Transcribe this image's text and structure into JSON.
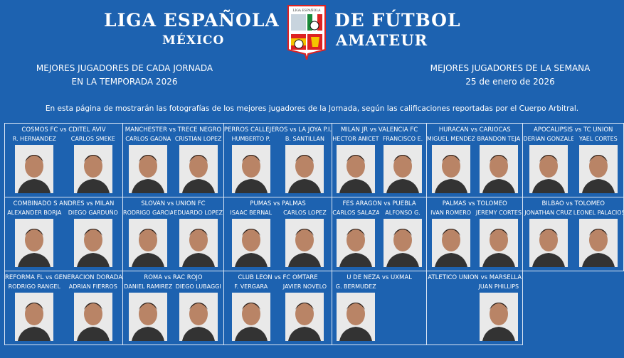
{
  "header": {
    "title_left": "LIGA ESPAÑOLA",
    "title_right": "DE FÚTBOL",
    "sub_left": "MÉXICO",
    "sub_right": "AMATEUR",
    "logo_text": "LIGA ESPAÑOLA"
  },
  "left_heading": {
    "line1": "MEJORES JUGADORES DE CADA JORNADA",
    "line2": "EN LA TEMPORADA 2026"
  },
  "right_heading": {
    "line1": "MEJORES JUGADORES DE LA SEMANA",
    "line2": "25 de enero de 2026"
  },
  "intro": "En esta página de mostrarán las fotografías de los mejores jugadores de la Jornada, según las calificaciones reportadas por el Cuerpo Arbitral.",
  "matches": [
    {
      "match": "COSMOS FC vs CDITEL AVIV",
      "left": "R. HERNANDEZ",
      "right": "CARLOS SMEKE"
    },
    {
      "match": "MANCHESTER vs TRECE NEGRO",
      "left": "CARLOS GAONA",
      "right": "CRISTIAN LOPEZ"
    },
    {
      "match": "PERROS CALLEJEROS vs LA JOYA P.I.",
      "left": "HUMBERTO P.",
      "right": "B. SANTILLAN"
    },
    {
      "match": "MILAN JR vs VALENCIA FC",
      "left": "HECTOR ANICETO",
      "right": "FRANCISCO E."
    },
    {
      "match": "HURACAN vs CARIOCAS",
      "left": "MIGUEL MENDEZ",
      "right": "BRANDON TEJA"
    },
    {
      "match": "APOCALIPSIS vs TC UNION",
      "left": "DERIAN GONZALEZ",
      "right": "YAEL CORTES"
    },
    {
      "match": "COMBINADO S ANDRES vs MILAN",
      "left": "ALEXANDER BORJA",
      "right": "DIEGO GARDUÑO"
    },
    {
      "match": "SLOVAN vs UNION FC",
      "left": "RODRIGO GARCIA",
      "right": "EDUARDO LOPEZ"
    },
    {
      "match": "PUMAS vs PALMAS",
      "left": "ISAAC BERNAL",
      "right": "CARLOS LOPEZ"
    },
    {
      "match": "FES ARAGON vs PUEBLA",
      "left": "CARLOS SALAZAR",
      "right": "ALFONSO G."
    },
    {
      "match": "PALMAS vs TOLOMEO",
      "left": "IVAN ROMERO",
      "right": "JEREMY CORTES"
    },
    {
      "match": "BILBAO vs TOLOMEO",
      "left": "JONATHAN CRUZ",
      "right": "LEONEL PALACIOS"
    },
    {
      "match": "REFORMA FL vs GENERACION DORADA",
      "left": "RODRIGO RANGEL",
      "right": "ADRIAN FIERROS"
    },
    {
      "match": "ROMA vs RAC ROJO",
      "left": "DANIEL RAMIREZ",
      "right": "DIEGO LUBAGGI"
    },
    {
      "match": "CLUB LEON vs FC OMTARE",
      "left": "F. VERGARA",
      "right": "JAVIER NOVELO"
    },
    {
      "match": "U DE NEZA vs UXMAL",
      "left": "G. BERMUDEZ",
      "right": ""
    },
    {
      "match": "ATLETICO UNION vs MARSELLA",
      "left": "",
      "right": "JUAN PHILLIPS"
    }
  ],
  "colors": {
    "background": "#1d62b0",
    "border": "#dbe6f5"
  }
}
